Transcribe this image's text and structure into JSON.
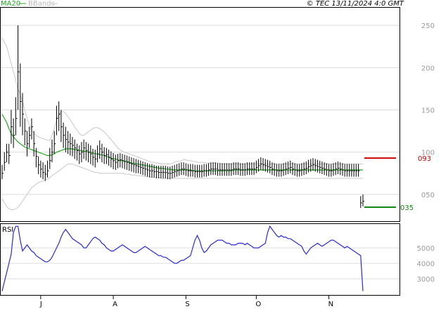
{
  "header": {
    "legend_ma": "MA20",
    "legend_bb": "BBands",
    "copyright": "© TEC 13/11/2024 4:0 GMT"
  },
  "colors": {
    "price": "#000000",
    "ma": "#22aa22",
    "bbands": "#c8c8c8",
    "rsi": "#2a2ad8",
    "resistance": "#cc0000",
    "support": "#118811",
    "grid": "#dcdcdc",
    "axis": "#000000"
  },
  "chart_data": [
    {
      "type": "ohlc",
      "panel": "price",
      "y_ticks": [
        "250",
        "200",
        "150",
        "100",
        "050"
      ],
      "y_tick_values": [
        250,
        200,
        150,
        100,
        50
      ],
      "ylim": [
        20,
        270
      ],
      "x_ticks": [
        "J",
        "A",
        "S",
        "O",
        "N"
      ],
      "x_tick_index": [
        17,
        49,
        81,
        112,
        144
      ],
      "n_bars": 160,
      "levels": [
        {
          "name": "resistance",
          "label": "093",
          "value": 93
        },
        {
          "name": "support",
          "label": "035",
          "value": 35
        }
      ],
      "close": [
        75,
        88,
        100,
        96,
        130,
        120,
        140,
        195,
        160,
        145,
        125,
        110,
        120,
        130,
        110,
        95,
        85,
        80,
        76,
        74,
        78,
        90,
        100,
        110,
        140,
        145,
        130,
        120,
        115,
        112,
        110,
        108,
        105,
        102,
        98,
        100,
        105,
        102,
        100,
        98,
        94,
        92,
        98,
        104,
        100,
        96,
        97,
        94,
        92,
        90,
        88,
        90,
        91,
        90,
        89,
        88,
        87,
        86,
        85,
        84,
        83,
        82,
        81,
        80,
        79,
        78,
        78,
        77,
        77,
        76,
        76,
        76,
        76,
        75,
        75,
        76,
        77,
        78,
        79,
        80,
        80,
        79,
        78,
        78,
        78,
        77,
        77,
        77,
        77,
        78,
        78,
        79,
        80,
        80,
        80,
        79,
        79,
        79,
        79,
        79,
        79,
        79,
        80,
        80,
        80,
        79,
        79,
        79,
        80,
        80,
        80,
        80,
        82,
        84,
        86,
        85,
        84,
        83,
        82,
        80,
        79,
        78,
        78,
        78,
        79,
        80,
        81,
        82,
        80,
        79,
        78,
        78,
        79,
        80,
        81,
        83,
        84,
        85,
        84,
        83,
        82,
        81,
        80,
        79,
        78,
        78,
        79,
        80,
        81,
        80,
        79,
        78,
        78,
        78,
        78,
        78,
        78,
        78,
        40,
        42
      ],
      "high": [
        85,
        100,
        110,
        110,
        150,
        140,
        165,
        250,
        205,
        170,
        140,
        125,
        130,
        140,
        125,
        105,
        95,
        90,
        88,
        85,
        90,
        105,
        115,
        125,
        155,
        160,
        150,
        135,
        130,
        125,
        122,
        118,
        115,
        110,
        108,
        112,
        115,
        112,
        110,
        108,
        104,
        103,
        108,
        114,
        110,
        106,
        105,
        103,
        101,
        99,
        97,
        98,
        99,
        98,
        97,
        96,
        95,
        94,
        93,
        92,
        91,
        90,
        89,
        88,
        87,
        86,
        86,
        85,
        84,
        84,
        84,
        84,
        84,
        83,
        83,
        84,
        85,
        86,
        87,
        88,
        88,
        87,
        86,
        86,
        86,
        85,
        85,
        85,
        85,
        86,
        86,
        87,
        88,
        88,
        88,
        87,
        87,
        87,
        87,
        87,
        87,
        87,
        88,
        88,
        88,
        87,
        87,
        87,
        88,
        88,
        88,
        88,
        90,
        92,
        94,
        93,
        92,
        91,
        90,
        88,
        87,
        86,
        86,
        86,
        87,
        88,
        89,
        90,
        88,
        87,
        86,
        86,
        87,
        88,
        89,
        91,
        92,
        93,
        92,
        91,
        90,
        89,
        88,
        87,
        86,
        86,
        87,
        88,
        89,
        88,
        87,
        86,
        86,
        86,
        86,
        86,
        86,
        86,
        48,
        50
      ],
      "low": [
        68,
        78,
        88,
        86,
        110,
        105,
        120,
        150,
        130,
        120,
        108,
        95,
        105,
        115,
        95,
        82,
        74,
        70,
        68,
        66,
        70,
        80,
        88,
        98,
        120,
        125,
        112,
        105,
        100,
        98,
        96,
        95,
        92,
        90,
        86,
        88,
        92,
        90,
        88,
        86,
        84,
        82,
        88,
        92,
        88,
        86,
        86,
        84,
        82,
        80,
        79,
        81,
        82,
        81,
        80,
        79,
        78,
        77,
        76,
        75,
        75,
        74,
        73,
        72,
        71,
        70,
        70,
        70,
        69,
        69,
        69,
        69,
        69,
        68,
        68,
        69,
        70,
        71,
        72,
        73,
        73,
        72,
        71,
        71,
        71,
        70,
        70,
        70,
        70,
        71,
        71,
        72,
        73,
        73,
        73,
        72,
        72,
        72,
        72,
        72,
        72,
        72,
        73,
        73,
        73,
        72,
        72,
        72,
        73,
        73,
        73,
        73,
        75,
        77,
        79,
        78,
        77,
        76,
        75,
        73,
        72,
        71,
        71,
        71,
        72,
        73,
        74,
        75,
        73,
        72,
        71,
        71,
        72,
        73,
        74,
        76,
        77,
        78,
        77,
        76,
        75,
        74,
        73,
        72,
        71,
        71,
        72,
        73,
        74,
        73,
        72,
        71,
        71,
        71,
        71,
        71,
        71,
        71,
        34,
        36
      ],
      "ma20": [
        145,
        140,
        135,
        128,
        122,
        118,
        115,
        112,
        110,
        108,
        106,
        105,
        104,
        103,
        102,
        101,
        100,
        99,
        98,
        97,
        96,
        96,
        97,
        98,
        100,
        101,
        102,
        103,
        104,
        104,
        104,
        104,
        103,
        103,
        102,
        102,
        101,
        101,
        100,
        100,
        99,
        98,
        98,
        97,
        97,
        96,
        95,
        94,
        93,
        92,
        92,
        91,
        90,
        90,
        89,
        89,
        88,
        87,
        87,
        86,
        86,
        85,
        85,
        84,
        84,
        83,
        83,
        82,
        82,
        81,
        81,
        81,
        80,
        80,
        80,
        79,
        79,
        79,
        79,
        79,
        79,
        79,
        79,
        79,
        78,
        78,
        78,
        78,
        78,
        78,
        78,
        78,
        78,
        78,
        78,
        78,
        78,
        78,
        78,
        78,
        78,
        78,
        79,
        79,
        79,
        79,
        79,
        79,
        79,
        79,
        79,
        79,
        79,
        79,
        79,
        79,
        79,
        79,
        79,
        79,
        79,
        79,
        79,
        79,
        79,
        79,
        79,
        79,
        79,
        79,
        79,
        79,
        79,
        79,
        79,
        79,
        79,
        79,
        79,
        79,
        79,
        79,
        79,
        79,
        79,
        79,
        79,
        79,
        79,
        79,
        79,
        79,
        79,
        79,
        79,
        79,
        79,
        79,
        79,
        79
      ],
      "bb_upper": [
        235,
        230,
        225,
        215,
        205,
        195,
        185,
        175,
        168,
        160,
        150,
        140,
        132,
        126,
        122,
        120,
        118,
        117,
        116,
        115,
        114,
        114,
        120,
        128,
        138,
        145,
        148,
        148,
        146,
        142,
        138,
        134,
        130,
        126,
        122,
        120,
        120,
        122,
        124,
        126,
        128,
        129,
        129,
        128,
        126,
        124,
        121,
        118,
        115,
        112,
        108,
        105,
        103,
        101,
        100,
        99,
        98,
        97,
        96,
        95,
        94,
        93,
        92,
        91,
        90,
        89,
        88,
        88,
        87,
        87,
        86,
        86,
        86,
        86,
        86,
        87,
        88,
        89,
        89,
        90,
        91,
        91,
        90,
        90,
        89,
        89,
        88,
        88,
        88,
        88,
        87,
        87,
        87,
        87,
        87,
        87,
        87,
        86,
        86,
        86,
        86,
        86,
        86,
        86,
        86,
        86,
        86,
        86,
        86,
        86,
        86,
        86,
        86,
        86,
        86,
        86,
        86,
        86,
        86,
        86,
        86,
        86,
        86,
        86,
        86,
        86,
        86,
        86,
        86,
        86,
        86,
        86,
        86,
        86,
        86,
        86,
        86,
        86,
        86,
        86,
        86,
        86,
        86,
        86,
        86,
        86,
        86,
        86,
        86,
        86,
        86,
        86,
        86,
        86,
        86,
        86,
        86,
        86,
        86,
        86
      ],
      "bb_lower": [
        45,
        40,
        36,
        33,
        32,
        32,
        33,
        35,
        38,
        42,
        46,
        50,
        54,
        58,
        60,
        62,
        64,
        65,
        66,
        67,
        68,
        70,
        72,
        74,
        76,
        78,
        80,
        82,
        84,
        86,
        86,
        86,
        85,
        84,
        83,
        82,
        81,
        80,
        79,
        78,
        77,
        76,
        76,
        75,
        75,
        75,
        75,
        75,
        75,
        75,
        75,
        75,
        75,
        75,
        74,
        74,
        74,
        73,
        73,
        73,
        72,
        72,
        72,
        71,
        71,
        71,
        70,
        70,
        70,
        70,
        69,
        69,
        69,
        69,
        69,
        69,
        69,
        69,
        69,
        69,
        69,
        69,
        69,
        69,
        69,
        69,
        69,
        69,
        69,
        69,
        69,
        69,
        69,
        69,
        69,
        69,
        69,
        69,
        69,
        69,
        69,
        69,
        69,
        69,
        69,
        69,
        69,
        69,
        69,
        69,
        69,
        69,
        69,
        69,
        69,
        69,
        69,
        69,
        69,
        69,
        69,
        69,
        69,
        69,
        69,
        69,
        69,
        69,
        69,
        69,
        69,
        69,
        69,
        69,
        69,
        69,
        69,
        69,
        69,
        69,
        69,
        69,
        69,
        69,
        69,
        69,
        69,
        69,
        69,
        69,
        69,
        69,
        69,
        69,
        69,
        69,
        69,
        69,
        69,
        69
      ]
    },
    {
      "type": "line",
      "panel": "rsi",
      "label": "RSI",
      "y_ticks": [
        "5000",
        "4000",
        "3000"
      ],
      "y_tick_values": [
        50,
        40,
        30
      ],
      "ylim": [
        20,
        65
      ],
      "values": [
        22,
        28,
        34,
        40,
        46,
        60,
        64,
        64,
        55,
        48,
        50,
        52,
        50,
        48,
        47,
        45,
        44,
        43,
        42,
        41,
        41,
        42,
        44,
        47,
        50,
        53,
        57,
        60,
        62,
        60,
        58,
        56,
        55,
        54,
        53,
        52,
        50,
        50,
        52,
        54,
        56,
        57,
        56,
        55,
        53,
        52,
        50,
        49,
        48,
        48,
        49,
        50,
        51,
        52,
        51,
        50,
        49,
        48,
        47,
        47,
        48,
        49,
        50,
        51,
        50,
        49,
        48,
        47,
        46,
        45,
        45,
        44,
        44,
        43,
        42,
        41,
        40,
        40,
        41,
        42,
        42,
        43,
        44,
        45,
        50,
        55,
        58,
        55,
        50,
        47,
        48,
        50,
        52,
        53,
        54,
        55,
        55,
        55,
        54,
        53,
        53,
        52,
        52,
        52,
        53,
        53,
        53,
        52,
        53,
        52,
        51,
        50,
        50,
        50,
        51,
        52,
        53,
        60,
        64,
        62,
        60,
        58,
        57,
        58,
        57,
        57,
        56,
        56,
        55,
        54,
        53,
        52,
        51,
        48,
        46,
        48,
        50,
        51,
        52,
        53,
        52,
        51,
        52,
        53,
        54,
        55,
        55,
        54,
        53,
        52,
        51,
        50,
        51,
        50,
        49,
        48,
        47,
        46,
        45,
        22
      ]
    }
  ]
}
